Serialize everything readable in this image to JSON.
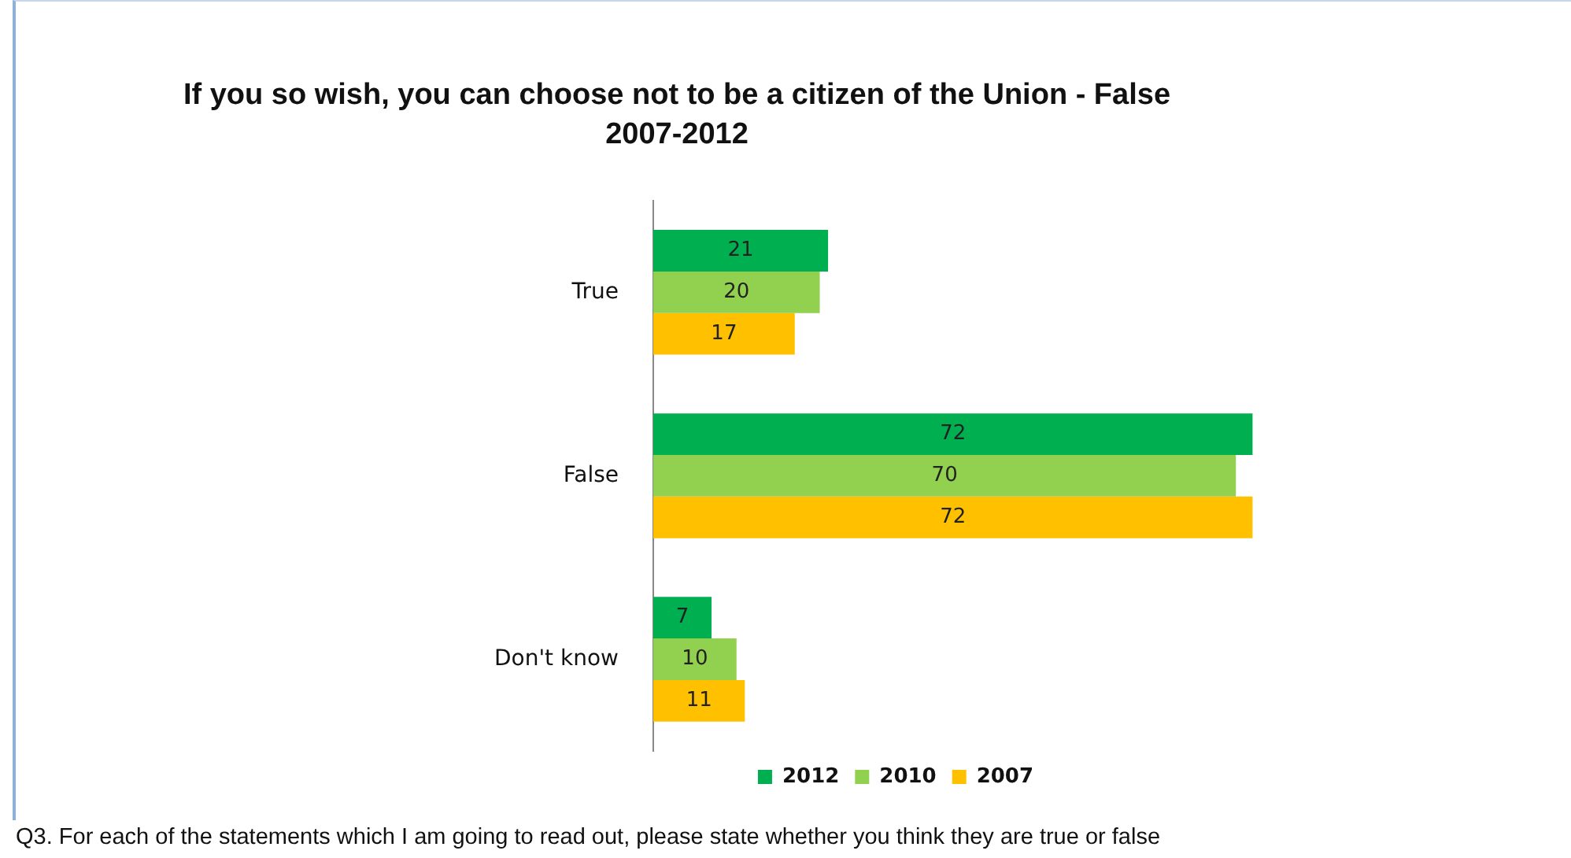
{
  "chart_data": {
    "type": "bar",
    "orientation": "horizontal",
    "title": "If you so wish, you can choose not to be a citizen of the Union - False",
    "subtitle": "2007-2012",
    "categories": [
      "True",
      "False",
      "Don't know"
    ],
    "series": [
      {
        "name": "2012",
        "color": "#00b050",
        "values": [
          21,
          72,
          7
        ]
      },
      {
        "name": "2010",
        "color": "#92d050",
        "values": [
          20,
          70,
          10
        ]
      },
      {
        "name": "2007",
        "color": "#ffc000",
        "values": [
          17,
          72,
          11
        ]
      }
    ],
    "data_labels": true,
    "legend": "bottom",
    "tick_labels": "y",
    "annotations": [
      "Q3. For each of the statements which I am going to read out, please state whether you think they are true or false"
    ]
  }
}
